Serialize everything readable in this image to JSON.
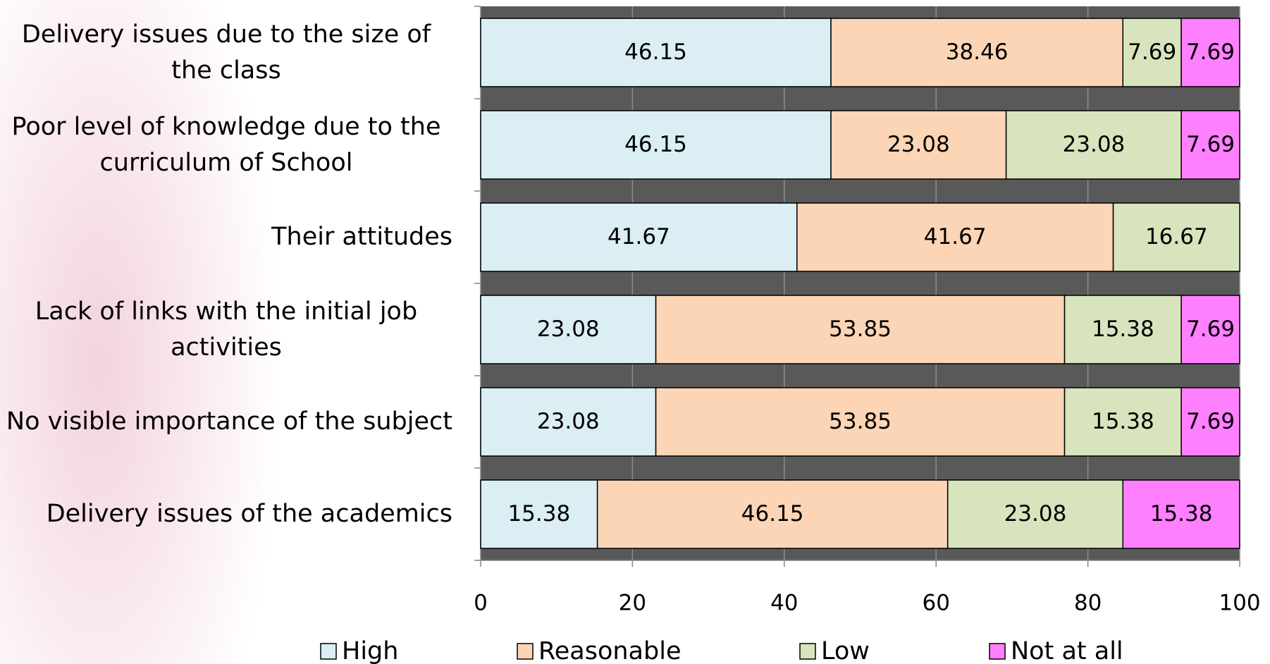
{
  "chart_data": {
    "type": "stacked_barh",
    "categories": [
      "Delivery issues due to the size of the class",
      "Poor level of knowledge due to the curriculum of School",
      "Their attitudes",
      "Lack of links with the initial job activities",
      "No visible importance of the subject",
      "Delivery issues of the academics"
    ],
    "series": [
      {
        "name": "High",
        "color": "#daeef3",
        "values": [
          46.15,
          46.15,
          41.67,
          23.08,
          23.08,
          15.38
        ]
      },
      {
        "name": "Reasonable",
        "color": "#fbd5b5",
        "values": [
          38.46,
          23.08,
          41.67,
          53.85,
          53.85,
          46.15
        ]
      },
      {
        "name": "Low",
        "color": "#d7e4bd",
        "values": [
          7.69,
          23.08,
          16.67,
          15.38,
          15.38,
          23.08
        ]
      },
      {
        "name": "Not at all",
        "color": "#ff80ff",
        "values": [
          7.69,
          7.69,
          null,
          7.69,
          7.69,
          15.38
        ]
      }
    ],
    "xlim": [
      0,
      100
    ],
    "xticks": [
      0,
      20,
      40,
      60,
      80,
      100
    ],
    "grid": true,
    "legend": "bottom",
    "plot_background": "#595959"
  }
}
